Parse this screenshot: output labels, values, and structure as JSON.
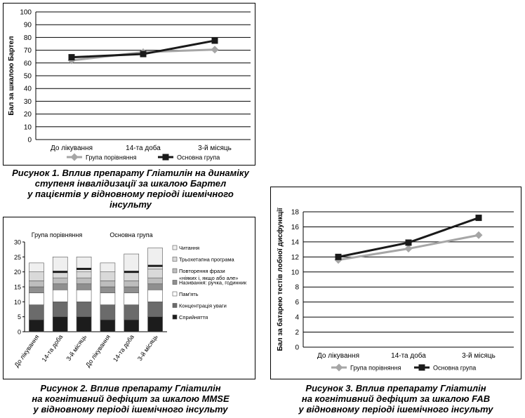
{
  "chart_data": [
    {
      "type": "line",
      "ylabel": "Бал за шкалою Бартел",
      "categories": [
        "До лікування",
        "14-та доба",
        "3-й місяць"
      ],
      "ylim": [
        0,
        100
      ],
      "yticks": [
        0,
        10,
        20,
        30,
        40,
        50,
        60,
        70,
        80,
        90,
        100
      ],
      "grid": true,
      "legend_position": "bottom",
      "series": [
        {
          "name": "Група порівняння",
          "values": [
            62,
            68.5,
            70.5
          ],
          "color": "#a6a6a6",
          "marker": "diamond"
        },
        {
          "name": "Основна група",
          "values": [
            64.5,
            67,
            77.5
          ],
          "color": "#1a1a1a",
          "marker": "square"
        }
      ]
    },
    {
      "type": "bar",
      "stacked": true,
      "groups": [
        "Група порівняння",
        "Основна група"
      ],
      "categories": [
        "До лікування",
        "14-та доба",
        "3-й місяць",
        "До лікування",
        "14-та доба",
        "3-й місяць"
      ],
      "ylim": [
        0,
        30
      ],
      "yticks": [
        0,
        5,
        10,
        15,
        20,
        25,
        30
      ],
      "legend_position": "right",
      "series": [
        {
          "name": "Сприйняття",
          "values": [
            4,
            5,
            5,
            4,
            4,
            5
          ],
          "color": "#1c1c1c"
        },
        {
          "name": "Концентрація уваги",
          "values": [
            5,
            5,
            5,
            5,
            5,
            5
          ],
          "color": "#6b6b6b"
        },
        {
          "name": "Пам'ять",
          "values": [
            4,
            4,
            4,
            4,
            4,
            4
          ],
          "color": "#ffffff"
        },
        {
          "name": "Називання: ручка, годинник",
          "values": [
            2,
            2,
            2,
            2,
            2,
            2
          ],
          "color": "#8f8f8f"
        },
        {
          "name": "Повторення фрази «ніяких і, якщо або але»",
          "values": [
            2,
            2,
            2,
            2,
            2,
            2
          ],
          "color": "#bdbdbd"
        },
        {
          "name": "Трьохетапна програма",
          "values": [
            3,
            2,
            2,
            3,
            3,
            3
          ],
          "color": "#d9d9d9"
        },
        {
          "name": "Читання",
          "values": [
            3,
            5,
            5,
            3,
            6,
            7
          ],
          "color": "#efefef"
        }
      ],
      "dark_band_positions": [
        null,
        20,
        21,
        null,
        20,
        22
      ]
    },
    {
      "type": "line",
      "ylabel": "Бал за батарею тестів лобної дисфункції",
      "categories": [
        "До лікування",
        "14-та доба",
        "3-й місяць"
      ],
      "ylim": [
        0,
        18
      ],
      "yticks": [
        0,
        2,
        4,
        6,
        8,
        10,
        12,
        14,
        16,
        18
      ],
      "grid": true,
      "legend_position": "bottom",
      "series": [
        {
          "name": "Група порівняння",
          "values": [
            11.6,
            13.1,
            14.9
          ],
          "color": "#a6a6a6",
          "marker": "diamond"
        },
        {
          "name": "Основна група",
          "values": [
            12,
            13.9,
            17.2
          ],
          "color": "#1a1a1a",
          "marker": "square"
        }
      ]
    }
  ],
  "captions": {
    "figure1": [
      "Рисунок 1. Вплив препарату Гліатилін на динаміку",
      "ступеня інвалідизації за шкалою Бартел",
      "у пацієнтів у відновному періоді ішемічного",
      "інсульту"
    ],
    "figure2": [
      "Рисунок 2. Вплив препарату Гліатилін",
      "на когнітивний дефіцит за шкалою MMSE",
      "у відновному періоді ішемічного інсульту"
    ],
    "figure3": [
      "Рисунок 3. Вплив препарату Гліатилін",
      "на когнітивний дефіцит за шкалою FAB",
      "у відновному періоді ішемічного інсульту"
    ]
  }
}
